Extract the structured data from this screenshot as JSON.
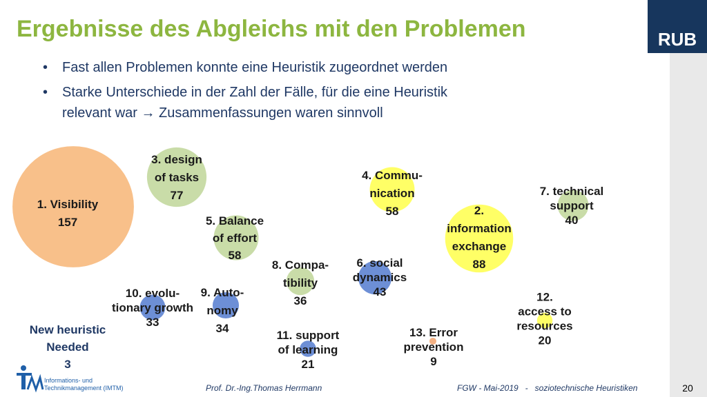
{
  "header": {
    "title": "Ergebnisse des Abgleichs mit den Problemen",
    "logo": "RUB"
  },
  "bullets": [
    [
      "Fast allen Problemen konnte eine Heuristik zugeordnet werden"
    ],
    [
      "Starke Unterschiede in der Zahl der Fälle, für die eine Heuristik",
      "relevant war → Zusammenfassungen waren sinnvoll"
    ]
  ],
  "chart_data": {
    "type": "bubble",
    "labels": [
      [
        "1. Visibility"
      ],
      [
        "3. design",
        "of tasks"
      ],
      [
        "4. Commu-",
        "nication"
      ],
      [
        "7. technical",
        "support"
      ],
      [
        "5. Balance",
        "of effort"
      ],
      [
        "2.",
        "information",
        "exchange"
      ],
      [
        "8. Compa-",
        "tibility"
      ],
      [
        "6. social",
        "dynamics"
      ],
      [
        "10. evolu-",
        "tionary growth"
      ],
      [
        "9. Auto-",
        "nomy"
      ],
      [
        "12.",
        "access to",
        "resources"
      ],
      [
        "11. support",
        "of learning"
      ],
      [
        "13. Error",
        "prevention"
      ]
    ],
    "values": [
      157,
      77,
      58,
      40,
      58,
      88,
      36,
      43,
      33,
      34,
      20,
      21,
      9
    ],
    "colors": [
      "#f8c08a",
      "#c9dca8",
      "#ffff66",
      "#c9dca8",
      "#c9dca8",
      "#ffff66",
      "#c9dca8",
      "#6d8fd6",
      "#6d8fd6",
      "#6d8fd6",
      "#ffff66",
      "#6d8fd6",
      "#f4b183"
    ]
  },
  "note": {
    "lines": [
      "New heuristic",
      "Needed"
    ],
    "value": 3
  },
  "institute": [
    "Informations- und",
    "Technikmanagement (IMTM)"
  ],
  "footer": {
    "author": "Prof. Dr.-Ing.Thomas Herrmann",
    "event": "FGW - Mai-2019   -   soziotechnische Heuristiken",
    "page": 20
  }
}
